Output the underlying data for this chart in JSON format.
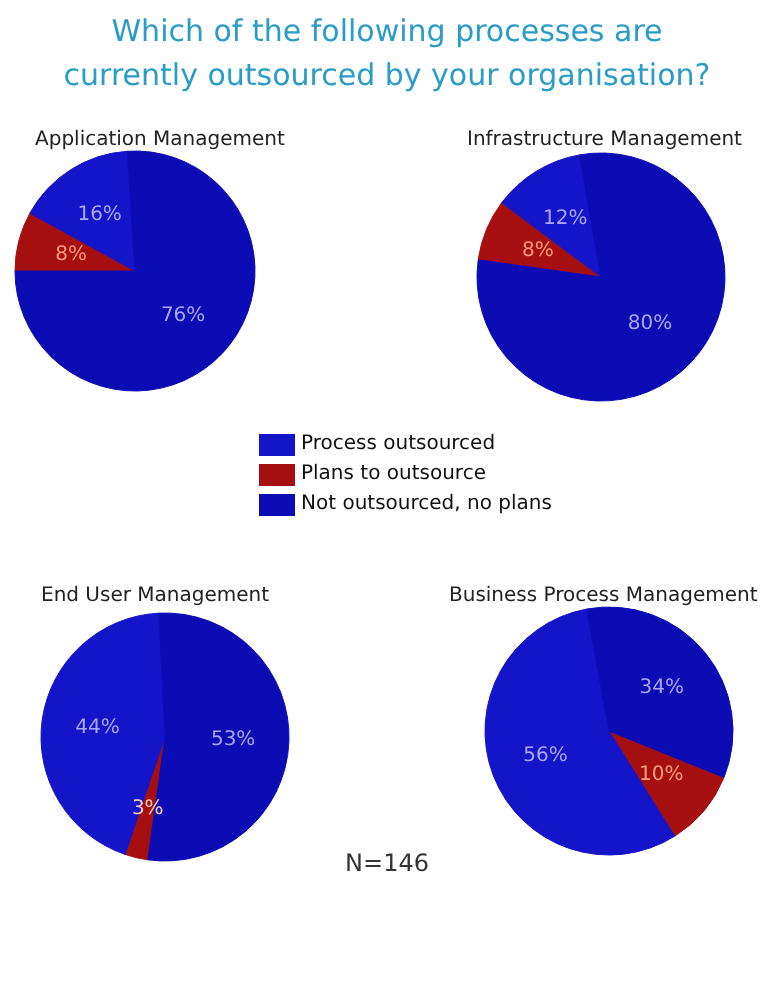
{
  "chart_data": [
    {
      "type": "other",
      "title": "Which of the following processes are currently outsourced by your organisation?",
      "annotations": [
        "N=146"
      ]
    },
    {
      "type": "pie",
      "title": "Application Management",
      "categories": [
        "Process outsourced",
        "Plans to outsource",
        "Not outsourced, no plans"
      ],
      "values": [
        16,
        8,
        76
      ],
      "value_labels": [
        "16%",
        "8%",
        "76%"
      ],
      "colors": [
        "#1414c8",
        "#a50f0f",
        "#0c0cb4"
      ],
      "legend": "bottom"
    },
    {
      "type": "pie",
      "title": "Infrastructure Management",
      "categories": [
        null,
        null,
        null
      ],
      "values": [
        12,
        8,
        80
      ],
      "value_labels": [
        "12%",
        "8%",
        "80%"
      ],
      "colors": [
        "#1414c8",
        "#a50f0f",
        "#0c0cb4"
      ]
    },
    {
      "type": "pie",
      "title": "End User Management",
      "categories": [
        null,
        null,
        null
      ],
      "values": [
        44,
        3,
        53
      ],
      "value_labels": [
        "44%",
        "3%",
        "53%"
      ],
      "colors": [
        "#1414c8",
        "#a50f0f",
        "#0c0cb4"
      ]
    },
    {
      "type": "pie",
      "title": "Business Process Management",
      "categories": [
        null,
        null,
        null
      ],
      "values": [
        56,
        10,
        34
      ],
      "value_labels": [
        "56%",
        "10%",
        "34%"
      ],
      "colors": [
        "#1414c8",
        "#a50f0f",
        "#0c0cb4"
      ]
    }
  ]
}
